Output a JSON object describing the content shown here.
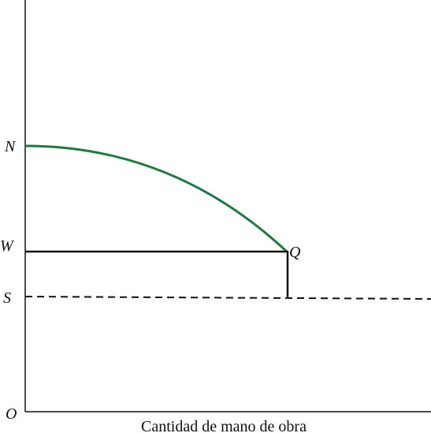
{
  "points": {
    "n": "N",
    "w": "W",
    "s": "S",
    "q": "Q",
    "o": "O"
  },
  "x_axis_label": "Cantidad de mano de obra"
}
